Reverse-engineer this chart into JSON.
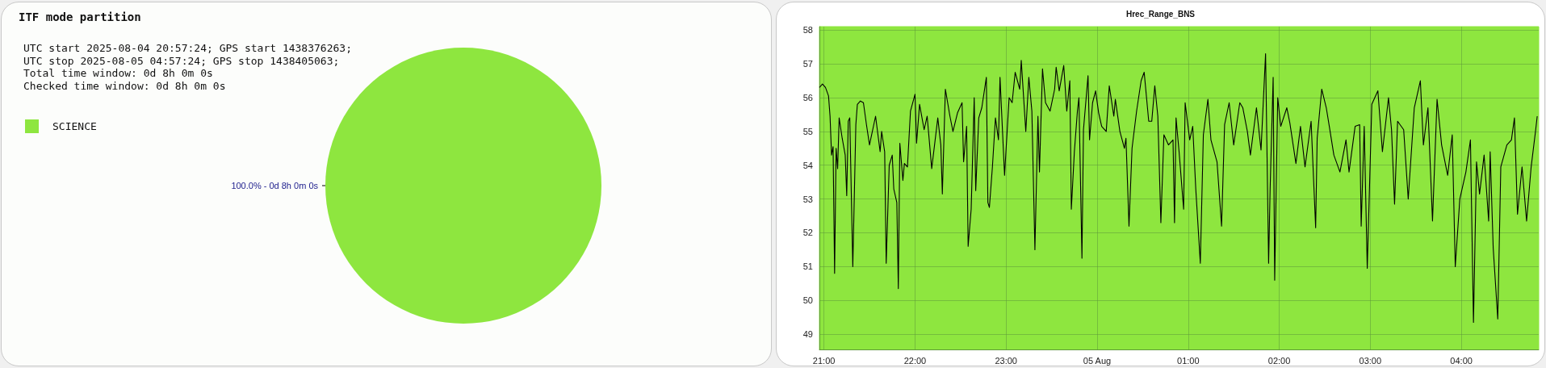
{
  "chart_data": [
    {
      "type": "pie",
      "title": "ITF mode partition",
      "annotations": [
        "UTC start 2025-08-04 20:57:24; GPS start 1438376263;",
        "UTC stop 2025-08-05 04:57:24; GPS stop 1438405063;",
        "Total time window: 0d 8h 0m 0s",
        "Checked time window: 0d 8h 0m 0s"
      ],
      "categories": [
        "SCIENCE"
      ],
      "values": [
        100
      ],
      "colors": [
        "#8ee63f"
      ],
      "value_labels": [
        "100.0% - 0d 8h 0m 0s"
      ],
      "legend": "top left"
    },
    {
      "type": "line",
      "title": "Hrec_Range_BNS",
      "x": [
        "2025-08-04T20:57",
        "2025-08-04T20:59",
        "2025-08-04T21:01",
        "2025-08-04T21:03",
        "2025-08-04T21:04",
        "2025-08-04T21:05",
        "2025-08-04T21:06",
        "2025-08-04T21:07",
        "2025-08-04T21:08",
        "2025-08-04T21:09",
        "2025-08-04T21:10",
        "2025-08-04T21:12",
        "2025-08-04T21:14",
        "2025-08-04T21:15",
        "2025-08-04T21:16",
        "2025-08-04T21:17",
        "2025-08-04T21:19",
        "2025-08-04T21:21",
        "2025-08-04T21:22",
        "2025-08-04T21:24",
        "2025-08-04T21:26",
        "2025-08-04T21:28",
        "2025-08-04T21:30",
        "2025-08-04T21:34",
        "2025-08-04T21:37",
        "2025-08-04T21:38",
        "2025-08-04T21:40",
        "2025-08-04T21:41",
        "2025-08-04T21:43",
        "2025-08-04T21:45",
        "2025-08-04T21:46",
        "2025-08-04T21:48",
        "2025-08-04T21:49",
        "2025-08-04T21:50",
        "2025-08-04T21:52",
        "2025-08-04T21:53",
        "2025-08-04T21:55",
        "2025-08-04T21:57",
        "2025-08-04T22:00",
        "2025-08-04T22:01",
        "2025-08-04T22:03",
        "2025-08-04T22:06",
        "2025-08-04T22:08",
        "2025-08-04T22:11",
        "2025-08-04T22:15",
        "2025-08-04T22:17",
        "2025-08-04T22:18",
        "2025-08-04T22:20",
        "2025-08-04T22:23",
        "2025-08-04T22:25",
        "2025-08-04T22:28",
        "2025-08-04T22:31",
        "2025-08-04T22:32",
        "2025-08-04T22:34",
        "2025-08-04T22:35",
        "2025-08-04T22:37",
        "2025-08-04T22:39",
        "2025-08-04T22:40",
        "2025-08-04T22:42",
        "2025-08-04T22:44",
        "2025-08-04T22:47",
        "2025-08-04T22:48",
        "2025-08-04T22:49",
        "2025-08-04T22:51",
        "2025-08-04T22:53",
        "2025-08-04T22:55",
        "2025-08-04T22:56",
        "2025-08-04T22:59",
        "2025-08-04T23:02",
        "2025-08-04T23:04",
        "2025-08-04T23:06",
        "2025-08-04T23:09",
        "2025-08-04T23:10",
        "2025-08-04T23:13",
        "2025-08-04T23:15",
        "2025-08-04T23:17",
        "2025-08-04T23:19",
        "2025-08-04T23:21",
        "2025-08-04T23:22",
        "2025-08-04T23:24",
        "2025-08-04T23:26",
        "2025-08-04T23:29",
        "2025-08-04T23:32",
        "2025-08-04T23:33",
        "2025-08-04T23:35",
        "2025-08-04T23:38",
        "2025-08-04T23:40",
        "2025-08-04T23:42",
        "2025-08-04T23:43",
        "2025-08-04T23:45",
        "2025-08-04T23:47",
        "2025-08-04T23:48",
        "2025-08-04T23:50",
        "2025-08-04T23:51",
        "2025-08-04T23:54",
        "2025-08-04T23:55",
        "2025-08-04T23:57",
        "2025-08-04T23:59",
        "2025-08-05T00:01",
        "2025-08-05T00:03",
        "2025-08-05T00:06",
        "2025-08-05T00:08",
        "2025-08-05T00:11",
        "2025-08-05T00:12",
        "2025-08-05T00:15",
        "2025-08-05T00:18",
        "2025-08-05T00:19",
        "2025-08-05T00:21",
        "2025-08-05T00:23",
        "2025-08-05T00:26",
        "2025-08-05T00:29",
        "2025-08-05T00:31",
        "2025-08-05T00:34",
        "2025-08-05T00:36",
        "2025-08-05T00:38",
        "2025-08-05T00:40",
        "2025-08-05T00:42",
        "2025-08-05T00:44",
        "2025-08-05T00:47",
        "2025-08-05T00:50",
        "2025-08-05T00:51",
        "2025-08-05T00:52",
        "2025-08-05T00:54",
        "2025-08-05T00:57",
        "2025-08-05T00:58",
        "2025-08-05T01:01",
        "2025-08-05T01:03",
        "2025-08-05T01:05",
        "2025-08-05T01:08",
        "2025-08-05T01:10",
        "2025-08-05T01:13",
        "2025-08-05T01:15",
        "2025-08-05T01:19",
        "2025-08-05T01:22",
        "2025-08-05T01:24",
        "2025-08-05T01:27",
        "2025-08-05T01:30",
        "2025-08-05T01:34",
        "2025-08-05T01:36",
        "2025-08-05T01:39",
        "2025-08-05T01:41",
        "2025-08-05T01:45",
        "2025-08-05T01:48",
        "2025-08-05T01:51",
        "2025-08-05T01:53",
        "2025-08-05T01:54",
        "2025-08-05T01:56",
        "2025-08-05T01:57",
        "2025-08-05T01:59",
        "2025-08-05T02:01",
        "2025-08-05T02:05",
        "2025-08-05T02:07",
        "2025-08-05T02:11",
        "2025-08-05T02:14",
        "2025-08-05T02:17",
        "2025-08-05T02:21",
        "2025-08-05T02:24",
        "2025-08-05T02:25",
        "2025-08-05T02:28",
        "2025-08-05T02:31",
        "2025-08-05T02:33",
        "2025-08-05T02:36",
        "2025-08-05T02:40",
        "2025-08-05T02:44",
        "2025-08-05T02:46",
        "2025-08-05T02:50",
        "2025-08-05T02:53",
        "2025-08-05T02:54",
        "2025-08-05T02:56",
        "2025-08-05T02:58",
        "2025-08-05T03:01",
        "2025-08-05T03:05",
        "2025-08-05T03:08",
        "2025-08-05T03:12",
        "2025-08-05T03:14",
        "2025-08-05T03:16",
        "2025-08-05T03:18",
        "2025-08-05T03:22",
        "2025-08-05T03:25",
        "2025-08-05T03:29",
        "2025-08-05T03:33",
        "2025-08-05T03:35",
        "2025-08-05T03:38",
        "2025-08-05T03:41",
        "2025-08-05T03:44",
        "2025-08-05T03:47",
        "2025-08-05T03:51",
        "2025-08-05T03:54",
        "2025-08-05T03:56",
        "2025-08-05T03:59",
        "2025-08-05T04:03",
        "2025-08-05T04:06",
        "2025-08-05T04:08",
        "2025-08-05T04:10",
        "2025-08-05T04:12",
        "2025-08-05T04:15",
        "2025-08-05T04:18",
        "2025-08-05T04:19",
        "2025-08-05T04:21",
        "2025-08-05T04:24",
        "2025-08-05T04:26",
        "2025-08-05T04:30",
        "2025-08-05T04:33",
        "2025-08-05T04:35",
        "2025-08-05T04:37",
        "2025-08-05T04:40",
        "2025-08-05T04:43",
        "2025-08-05T04:46",
        "2025-08-05T04:49",
        "2025-08-05T04:50"
      ],
      "series": [
        {
          "color": "#000000",
          "values": [
            56.3,
            56.4,
            56.3,
            56.05,
            55.45,
            54.3,
            54.55,
            50.8,
            54.5,
            53.9,
            55.4,
            54.8,
            54.3,
            53.1,
            55.3,
            55.4,
            51.0,
            55.2,
            55.8,
            55.9,
            55.85,
            55.2,
            54.6,
            55.45,
            54.4,
            55.0,
            54.4,
            51.1,
            54.0,
            54.3,
            53.3,
            52.9,
            50.35,
            54.65,
            53.55,
            54.05,
            53.95,
            55.6,
            56.1,
            54.65,
            55.8,
            55.05,
            55.45,
            53.9,
            55.4,
            54.6,
            53.15,
            56.25,
            55.45,
            55.0,
            55.55,
            55.85,
            54.1,
            55.15,
            51.6,
            52.7,
            56.0,
            53.25,
            55.4,
            55.7,
            56.6,
            52.9,
            52.75,
            53.95,
            55.4,
            54.75,
            56.6,
            53.7,
            56.0,
            55.85,
            56.75,
            56.25,
            57.1,
            55.0,
            56.6,
            55.6,
            51.5,
            55.45,
            53.8,
            56.85,
            55.85,
            55.6,
            56.25,
            56.9,
            56.2,
            56.95,
            55.6,
            56.5,
            52.7,
            54.4,
            55.6,
            56.0,
            51.25,
            55.05,
            56.65,
            54.75,
            55.85,
            56.2,
            55.55,
            55.15,
            55.0,
            56.35,
            55.45,
            55.95,
            55.0,
            54.5,
            54.8,
            52.2,
            54.5,
            55.6,
            56.5,
            56.75,
            55.3,
            55.3,
            56.35,
            55.45,
            52.3,
            54.9,
            54.6,
            54.75,
            52.3,
            55.4,
            54.4,
            52.7,
            55.85,
            54.75,
            55.15,
            53.3,
            51.1,
            54.9,
            55.95,
            54.75,
            54.1,
            52.2,
            55.2,
            55.85,
            54.6,
            55.85,
            55.7,
            55.0,
            54.3,
            55.7,
            54.45,
            57.3,
            51.1,
            53.3,
            56.6,
            50.6,
            56.0,
            55.15,
            55.7,
            55.25,
            54.05,
            55.15,
            53.95,
            55.3,
            52.15,
            54.8,
            56.25,
            55.7,
            55.15,
            54.3,
            53.8,
            54.75,
            53.8,
            55.15,
            55.2,
            52.2,
            55.15,
            50.95,
            55.8,
            56.2,
            54.4,
            56.0,
            55.05,
            52.85,
            55.3,
            55.05,
            53.0,
            55.7,
            56.5,
            54.6,
            55.7,
            52.35,
            55.95,
            54.6,
            53.7,
            54.9,
            51.0,
            53.0,
            53.8,
            54.75,
            49.35,
            54.1,
            53.15,
            54.3,
            52.35,
            54.4,
            51.55,
            49.45,
            53.95,
            54.6,
            54.75,
            55.4,
            52.55,
            53.95,
            52.35,
            53.95,
            55.05,
            55.45
          ]
        }
      ],
      "xlim": [
        "2025-08-04T20:57",
        "2025-08-05T04:51"
      ],
      "xticks": [
        {
          "value": "2025-08-04T21:00",
          "label": "21:00"
        },
        {
          "value": "2025-08-04T22:00",
          "label": "22:00"
        },
        {
          "value": "2025-08-04T23:00",
          "label": "23:00"
        },
        {
          "value": "2025-08-05T00:00",
          "label": "05 Aug"
        },
        {
          "value": "2025-08-05T01:00",
          "label": "01:00"
        },
        {
          "value": "2025-08-05T02:00",
          "label": "02:00"
        },
        {
          "value": "2025-08-05T03:00",
          "label": "03:00"
        },
        {
          "value": "2025-08-05T04:00",
          "label": "04:00"
        }
      ],
      "ylim": [
        48.55,
        58.1
      ],
      "yticks": [
        49,
        50,
        51,
        52,
        53,
        54,
        55,
        56,
        57,
        58
      ],
      "grid": true,
      "marker": "none",
      "line_style": "solid",
      "legend": false
    }
  ]
}
